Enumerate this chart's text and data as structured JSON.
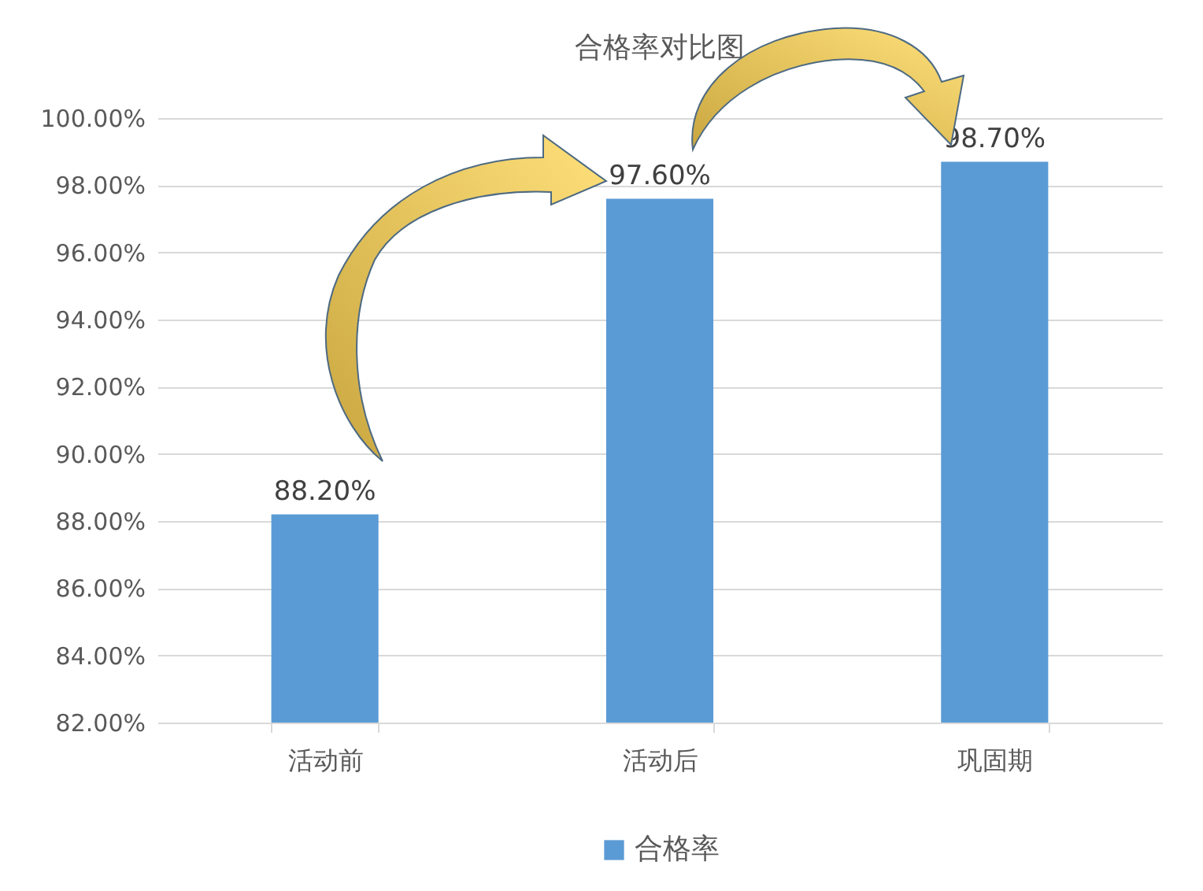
{
  "chart_data": {
    "type": "bar",
    "title": "合格率对比图",
    "categories": [
      "活动前",
      "活动后",
      "巩固期"
    ],
    "series": [
      {
        "name": "合格率",
        "color": "#5b9bd5",
        "values": [
          88.2,
          97.6,
          98.7
        ],
        "value_labels": [
          "88.20%",
          "97.60%",
          "98.70%"
        ]
      }
    ],
    "ylim": [
      82,
      100
    ],
    "yticks": [
      {
        "value": 82,
        "label": "82.00%"
      },
      {
        "value": 84,
        "label": "84.00%"
      },
      {
        "value": 86,
        "label": "86.00%"
      },
      {
        "value": 88,
        "label": "88.00%"
      },
      {
        "value": 90,
        "label": "90.00%"
      },
      {
        "value": 92,
        "label": "92.00%"
      },
      {
        "value": 94,
        "label": "94.00%"
      },
      {
        "value": 96,
        "label": "96.00%"
      },
      {
        "value": 98,
        "label": "98.00%"
      },
      {
        "value": 100,
        "label": "100.00%"
      }
    ],
    "grid": "y",
    "legend": "bottom"
  }
}
